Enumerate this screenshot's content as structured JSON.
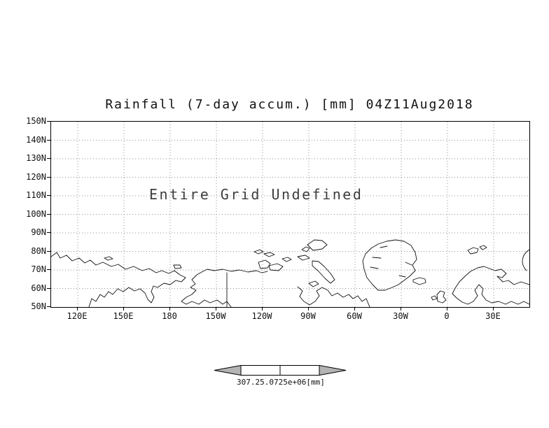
{
  "title": "Rainfall (7-day accum.) [mm] 04Z11Aug2018",
  "chart_data": {
    "type": "heatmap",
    "title": "Rainfall (7-day accum.) [mm] 04Z11Aug2018",
    "subtitle": "",
    "annotation": "Entire Grid Undefined",
    "values": [],
    "value_status": "undefined",
    "grid": "dotted",
    "x_axis": {
      "label": "",
      "ticks": [
        "120E",
        "150E",
        "180",
        "150W",
        "120W",
        "90W",
        "60W",
        "30W",
        "0",
        "30E"
      ]
    },
    "y_axis": {
      "label": "",
      "ticks": [
        "150N",
        "140N",
        "130N",
        "120N",
        "110N",
        "100N",
        "90N",
        "80N",
        "70N",
        "60N",
        "50N"
      ],
      "range": [
        50,
        150
      ]
    },
    "colorbar": {
      "tick_labels": [
        "307.2",
        "5.0725e+06"
      ],
      "unit": "[mm]",
      "arrow_color": "#b4b4b4",
      "cell_color": "#ffffff"
    }
  }
}
